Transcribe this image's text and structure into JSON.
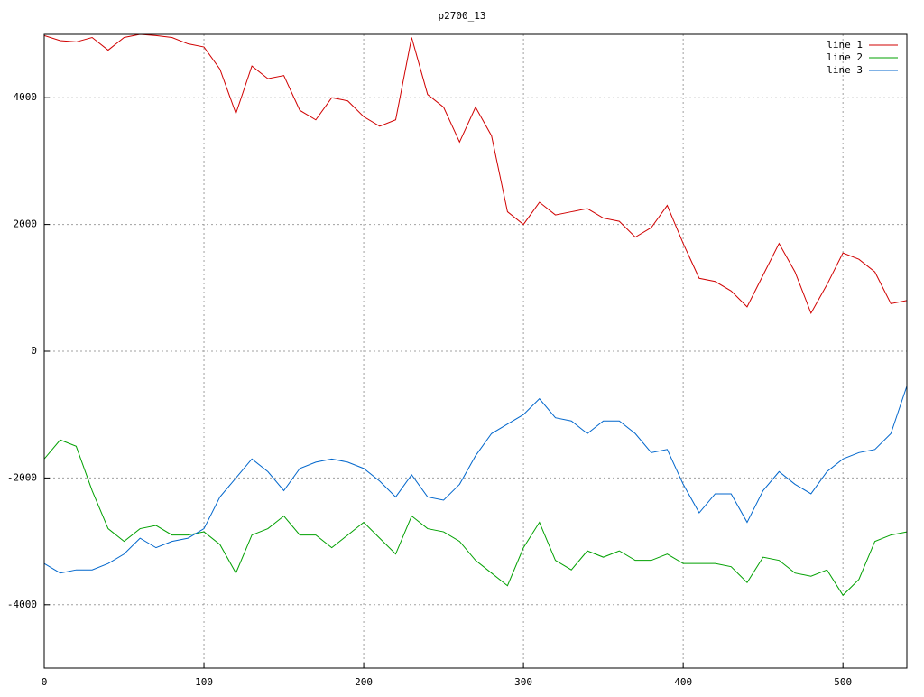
{
  "chart_data": {
    "type": "line",
    "title": "p2700_13",
    "x": [
      0,
      10,
      20,
      30,
      40,
      50,
      60,
      70,
      80,
      90,
      100,
      110,
      120,
      130,
      140,
      150,
      160,
      170,
      180,
      190,
      200,
      210,
      220,
      230,
      240,
      250,
      260,
      270,
      280,
      290,
      300,
      310,
      320,
      330,
      340,
      350,
      360,
      370,
      380,
      390,
      400,
      410,
      420,
      430,
      440,
      450,
      460,
      470,
      480,
      490,
      500,
      510,
      520,
      530,
      540
    ],
    "series": [
      {
        "name": "line 1",
        "color": "#d00000",
        "values": [
          4980,
          4900,
          4880,
          4950,
          4750,
          4950,
          5000,
          4980,
          4950,
          4850,
          4800,
          4450,
          3750,
          4500,
          4300,
          4350,
          3800,
          3650,
          4000,
          3950,
          3700,
          3550,
          3650,
          4950,
          4050,
          3850,
          3300,
          3850,
          3400,
          2200,
          2000,
          2350,
          2150,
          2200,
          2250,
          2100,
          2050,
          1800,
          1950,
          2300,
          1700,
          1150,
          1100,
          950,
          700,
          1200,
          1700,
          1250,
          600,
          1050,
          1550,
          1450,
          1250,
          750,
          800
        ]
      },
      {
        "name": "line 2",
        "color": "#00a000",
        "values": [
          -1700,
          -1400,
          -1500,
          -2200,
          -2800,
          -3000,
          -2800,
          -2750,
          -2900,
          -2900,
          -2850,
          -3050,
          -3500,
          -2900,
          -2800,
          -2600,
          -2900,
          -2900,
          -3100,
          -2900,
          -2700,
          -2950,
          -3200,
          -2600,
          -2800,
          -2850,
          -3000,
          -3300,
          -3500,
          -3700,
          -3100,
          -2700,
          -3300,
          -3450,
          -3150,
          -3250,
          -3150,
          -3300,
          -3300,
          -3200,
          -3350,
          -3350,
          -3350,
          -3400,
          -3650,
          -3250,
          -3300,
          -3500,
          -3550,
          -3450,
          -3850,
          -3600,
          -3000,
          -2900,
          -2850
        ]
      },
      {
        "name": "line 3",
        "color": "#0066cc",
        "values": [
          -3350,
          -3500,
          -3450,
          -3450,
          -3350,
          -3200,
          -2950,
          -3100,
          -3000,
          -2950,
          -2800,
          -2300,
          -2000,
          -1700,
          -1900,
          -2200,
          -1850,
          -1750,
          -1700,
          -1750,
          -1850,
          -2050,
          -2300,
          -1950,
          -2300,
          -2350,
          -2100,
          -1650,
          -1300,
          -1150,
          -1000,
          -750,
          -1050,
          -1100,
          -1300,
          -1100,
          -1100,
          -1300,
          -1600,
          -1550,
          -2100,
          -2550,
          -2250,
          -2250,
          -2700,
          -2200,
          -1900,
          -2100,
          -2250,
          -1900,
          -1700,
          -1600,
          -1550,
          -1300,
          -550
        ]
      }
    ],
    "xlim": [
      0,
      540
    ],
    "xticks": [
      0,
      100,
      200,
      300,
      400,
      500
    ],
    "ylim": [
      -5000,
      5000
    ],
    "yticks": [
      -4000,
      -2000,
      0,
      2000,
      4000
    ],
    "grid": true,
    "legend": "top-right"
  }
}
